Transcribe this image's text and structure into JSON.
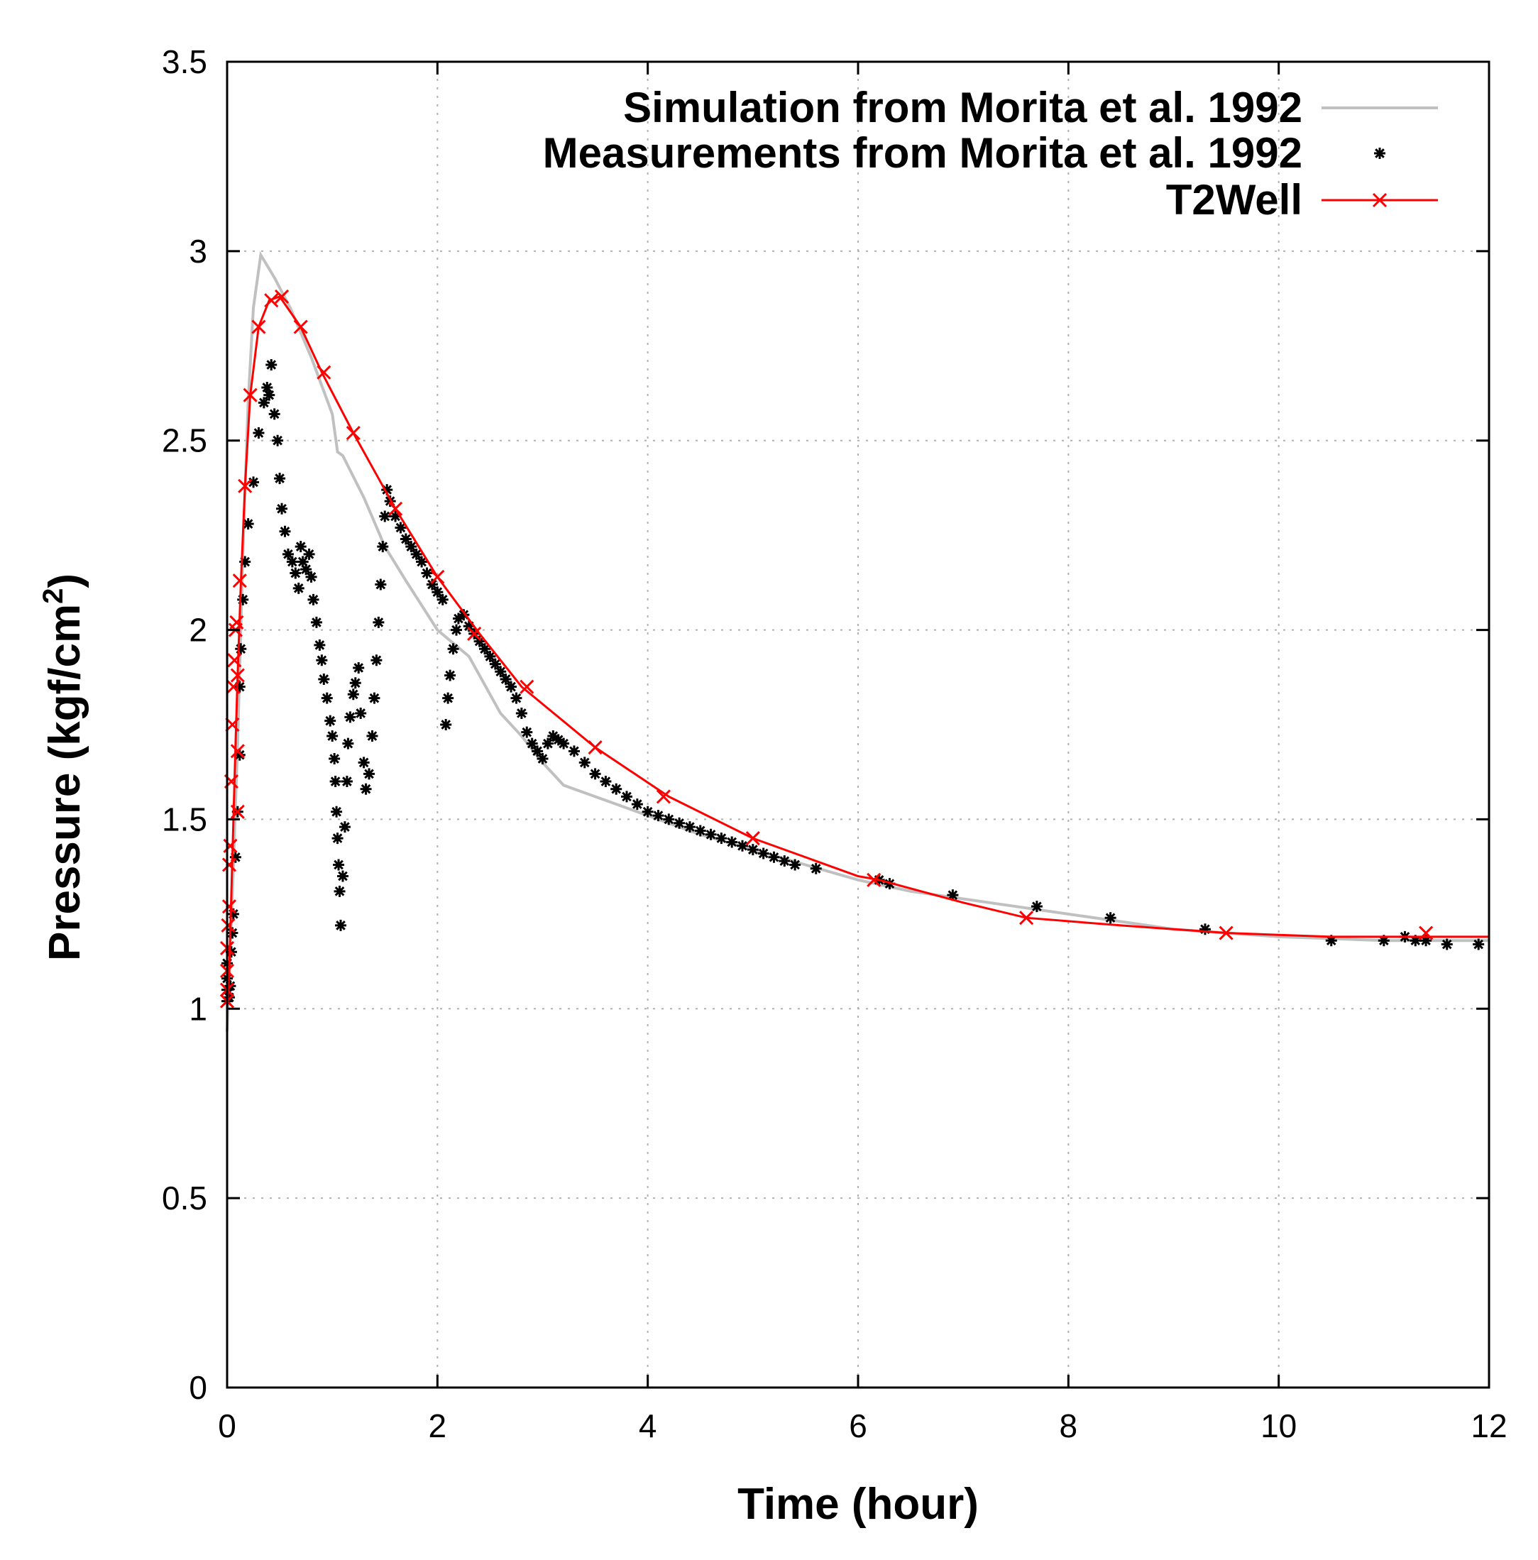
{
  "chart_data": {
    "type": "line",
    "title": "",
    "xlabel": "Time (hour)",
    "ylabel": "Pressure (kgf/cm",
    "ylabel_superscript": "2",
    "ylabel_close": ")",
    "xlim": [
      0,
      12
    ],
    "ylim": [
      0,
      3.5
    ],
    "xticks": [
      0,
      2,
      4,
      6,
      8,
      10,
      12
    ],
    "xtick_labels": [
      "0",
      "2",
      "4",
      "6",
      "8",
      "10",
      "12"
    ],
    "yticks": [
      0,
      0.5,
      1,
      1.5,
      2,
      2.5,
      3,
      3.5
    ],
    "ytick_labels": [
      "0",
      "0.5",
      "1",
      "1.5",
      "2",
      "2.5",
      "3",
      "3.5"
    ],
    "grid": true,
    "legend_position": "top-right",
    "series": [
      {
        "name": "Simulation from Morita et al. 1992",
        "style": "line",
        "color": "#c0c0c0",
        "points": [
          [
            0,
            0.94
          ],
          [
            0.05,
            1.3
          ],
          [
            0.1,
            1.7
          ],
          [
            0.15,
            2.2
          ],
          [
            0.2,
            2.6
          ],
          [
            0.25,
            2.85
          ],
          [
            0.32,
            2.99
          ],
          [
            0.45,
            2.93
          ],
          [
            0.6,
            2.85
          ],
          [
            0.8,
            2.72
          ],
          [
            1.0,
            2.57
          ],
          [
            1.05,
            2.47
          ],
          [
            1.1,
            2.46
          ],
          [
            1.3,
            2.35
          ],
          [
            1.5,
            2.22
          ],
          [
            1.7,
            2.13
          ],
          [
            2.0,
            2.0
          ],
          [
            2.3,
            1.93
          ],
          [
            2.6,
            1.78
          ],
          [
            2.8,
            1.72
          ],
          [
            3.0,
            1.65
          ],
          [
            3.2,
            1.59
          ],
          [
            3.5,
            1.56
          ],
          [
            4.0,
            1.51
          ],
          [
            4.5,
            1.46
          ],
          [
            5.0,
            1.42
          ],
          [
            5.5,
            1.38
          ],
          [
            6.0,
            1.34
          ],
          [
            6.5,
            1.31
          ],
          [
            7.0,
            1.29
          ],
          [
            7.5,
            1.27
          ],
          [
            8.0,
            1.25
          ],
          [
            8.5,
            1.23
          ],
          [
            9.0,
            1.21
          ],
          [
            9.5,
            1.2
          ],
          [
            10.0,
            1.19
          ],
          [
            10.5,
            1.185
          ],
          [
            11.0,
            1.18
          ],
          [
            11.5,
            1.18
          ],
          [
            12.0,
            1.18
          ]
        ]
      },
      {
        "name": "Measurements from Morita et al. 1992",
        "style": "points",
        "marker": "asterisk",
        "color": "#000000",
        "points": [
          [
            0.0,
            1.02
          ],
          [
            0.0,
            1.05
          ],
          [
            0.0,
            1.08
          ],
          [
            0.0,
            1.12
          ],
          [
            0.02,
            1.03
          ],
          [
            0.03,
            1.06
          ],
          [
            0.04,
            1.15
          ],
          [
            0.05,
            1.2
          ],
          [
            0.06,
            1.25
          ],
          [
            0.08,
            1.4
          ],
          [
            0.1,
            1.52
          ],
          [
            0.12,
            1.67
          ],
          [
            0.12,
            1.85
          ],
          [
            0.13,
            1.95
          ],
          [
            0.15,
            2.08
          ],
          [
            0.17,
            2.18
          ],
          [
            0.2,
            2.28
          ],
          [
            0.25,
            2.39
          ],
          [
            0.3,
            2.52
          ],
          [
            0.35,
            2.6
          ],
          [
            0.38,
            2.64
          ],
          [
            0.4,
            2.62
          ],
          [
            0.42,
            2.7
          ],
          [
            0.45,
            2.57
          ],
          [
            0.48,
            2.5
          ],
          [
            0.5,
            2.4
          ],
          [
            0.52,
            2.32
          ],
          [
            0.55,
            2.26
          ],
          [
            0.58,
            2.2
          ],
          [
            0.62,
            2.18
          ],
          [
            0.65,
            2.15
          ],
          [
            0.68,
            2.11
          ],
          [
            0.7,
            2.22
          ],
          [
            0.72,
            2.18
          ],
          [
            0.75,
            2.16
          ],
          [
            0.78,
            2.2
          ],
          [
            0.8,
            2.14
          ],
          [
            0.82,
            2.08
          ],
          [
            0.85,
            2.02
          ],
          [
            0.88,
            1.96
          ],
          [
            0.9,
            1.92
          ],
          [
            0.92,
            1.87
          ],
          [
            0.95,
            1.82
          ],
          [
            0.98,
            1.76
          ],
          [
            1.0,
            1.72
          ],
          [
            1.02,
            1.66
          ],
          [
            1.03,
            1.6
          ],
          [
            1.04,
            1.52
          ],
          [
            1.05,
            1.45
          ],
          [
            1.06,
            1.38
          ],
          [
            1.07,
            1.31
          ],
          [
            1.08,
            1.22
          ],
          [
            1.1,
            1.35
          ],
          [
            1.12,
            1.48
          ],
          [
            1.14,
            1.6
          ],
          [
            1.15,
            1.7
          ],
          [
            1.17,
            1.77
          ],
          [
            1.2,
            1.83
          ],
          [
            1.22,
            1.86
          ],
          [
            1.25,
            1.9
          ],
          [
            1.27,
            1.78
          ],
          [
            1.3,
            1.65
          ],
          [
            1.32,
            1.58
          ],
          [
            1.35,
            1.62
          ],
          [
            1.38,
            1.72
          ],
          [
            1.4,
            1.82
          ],
          [
            1.42,
            1.92
          ],
          [
            1.44,
            2.02
          ],
          [
            1.46,
            2.12
          ],
          [
            1.48,
            2.22
          ],
          [
            1.5,
            2.3
          ],
          [
            1.52,
            2.37
          ],
          [
            1.55,
            2.34
          ],
          [
            1.6,
            2.3
          ],
          [
            1.65,
            2.27
          ],
          [
            1.7,
            2.24
          ],
          [
            1.75,
            2.22
          ],
          [
            1.8,
            2.2
          ],
          [
            1.85,
            2.18
          ],
          [
            1.9,
            2.15
          ],
          [
            1.95,
            2.12
          ],
          [
            2.0,
            2.1
          ],
          [
            2.05,
            2.08
          ],
          [
            2.08,
            1.75
          ],
          [
            2.1,
            1.82
          ],
          [
            2.12,
            1.88
          ],
          [
            2.15,
            1.95
          ],
          [
            2.18,
            2.0
          ],
          [
            2.2,
            2.03
          ],
          [
            2.25,
            2.04
          ],
          [
            2.3,
            2.01
          ],
          [
            2.35,
            1.99
          ],
          [
            2.4,
            1.97
          ],
          [
            2.45,
            1.95
          ],
          [
            2.5,
            1.93
          ],
          [
            2.55,
            1.91
          ],
          [
            2.6,
            1.89
          ],
          [
            2.65,
            1.87
          ],
          [
            2.7,
            1.85
          ],
          [
            2.75,
            1.82
          ],
          [
            2.8,
            1.78
          ],
          [
            2.85,
            1.73
          ],
          [
            2.9,
            1.7
          ],
          [
            2.95,
            1.68
          ],
          [
            3.0,
            1.66
          ],
          [
            3.05,
            1.7
          ],
          [
            3.1,
            1.72
          ],
          [
            3.15,
            1.71
          ],
          [
            3.2,
            1.7
          ],
          [
            3.3,
            1.68
          ],
          [
            3.4,
            1.65
          ],
          [
            3.5,
            1.62
          ],
          [
            3.6,
            1.6
          ],
          [
            3.7,
            1.58
          ],
          [
            3.8,
            1.56
          ],
          [
            3.9,
            1.54
          ],
          [
            4.0,
            1.52
          ],
          [
            4.1,
            1.51
          ],
          [
            4.2,
            1.5
          ],
          [
            4.3,
            1.49
          ],
          [
            4.4,
            1.48
          ],
          [
            4.5,
            1.47
          ],
          [
            4.6,
            1.46
          ],
          [
            4.7,
            1.45
          ],
          [
            4.8,
            1.44
          ],
          [
            4.9,
            1.43
          ],
          [
            5.0,
            1.42
          ],
          [
            5.1,
            1.41
          ],
          [
            5.2,
            1.4
          ],
          [
            5.3,
            1.39
          ],
          [
            5.4,
            1.38
          ],
          [
            5.6,
            1.37
          ],
          [
            6.2,
            1.34
          ],
          [
            6.3,
            1.33
          ],
          [
            6.9,
            1.3
          ],
          [
            7.7,
            1.27
          ],
          [
            8.4,
            1.24
          ],
          [
            9.3,
            1.21
          ],
          [
            10.5,
            1.18
          ],
          [
            11.0,
            1.18
          ],
          [
            11.2,
            1.19
          ],
          [
            11.3,
            1.18
          ],
          [
            11.4,
            1.18
          ],
          [
            11.6,
            1.17
          ],
          [
            11.9,
            1.17
          ]
        ]
      },
      {
        "name": "T2Well",
        "style": "linespoints",
        "marker": "cross",
        "color": "#ff0000",
        "line_points": [
          [
            0.0,
            1.0
          ],
          [
            0.02,
            1.1
          ],
          [
            0.04,
            1.3
          ],
          [
            0.06,
            1.5
          ],
          [
            0.08,
            1.7
          ],
          [
            0.1,
            1.88
          ],
          [
            0.13,
            2.12
          ],
          [
            0.17,
            2.38
          ],
          [
            0.22,
            2.62
          ],
          [
            0.3,
            2.8
          ],
          [
            0.4,
            2.87
          ],
          [
            0.5,
            2.88
          ],
          [
            0.7,
            2.8
          ],
          [
            0.9,
            2.68
          ],
          [
            1.2,
            2.52
          ],
          [
            1.6,
            2.32
          ],
          [
            2.0,
            2.14
          ],
          [
            2.4,
            1.99
          ],
          [
            2.8,
            1.85
          ],
          [
            3.5,
            1.69
          ],
          [
            4.2,
            1.56
          ],
          [
            5.0,
            1.45
          ],
          [
            6.0,
            1.35
          ],
          [
            6.2,
            1.34
          ],
          [
            7.0,
            1.28
          ],
          [
            7.6,
            1.24
          ],
          [
            8.5,
            1.22
          ],
          [
            9.5,
            1.2
          ],
          [
            10.5,
            1.19
          ],
          [
            11.4,
            1.19
          ],
          [
            12.0,
            1.19
          ]
        ],
        "markers": [
          [
            0.0,
            1.02
          ],
          [
            0.0,
            1.05
          ],
          [
            0.0,
            1.1
          ],
          [
            0.0,
            1.16
          ],
          [
            0.01,
            1.22
          ],
          [
            0.02,
            1.27
          ],
          [
            0.02,
            1.38
          ],
          [
            0.03,
            1.43
          ],
          [
            0.04,
            1.6
          ],
          [
            0.05,
            1.75
          ],
          [
            0.06,
            1.85
          ],
          [
            0.07,
            1.92
          ],
          [
            0.08,
            2.0
          ],
          [
            0.09,
            2.02
          ],
          [
            0.1,
            1.68
          ],
          [
            0.1,
            1.52
          ],
          [
            0.1,
            1.88
          ],
          [
            0.12,
            2.13
          ],
          [
            0.17,
            2.38
          ],
          [
            0.22,
            2.62
          ],
          [
            0.3,
            2.8
          ],
          [
            0.42,
            2.87
          ],
          [
            0.52,
            2.88
          ],
          [
            0.7,
            2.8
          ],
          [
            0.92,
            2.68
          ],
          [
            1.2,
            2.52
          ],
          [
            1.6,
            2.32
          ],
          [
            2.0,
            2.14
          ],
          [
            2.35,
            1.99
          ],
          [
            2.85,
            1.85
          ],
          [
            3.5,
            1.69
          ],
          [
            4.15,
            1.56
          ],
          [
            5.0,
            1.45
          ],
          [
            6.15,
            1.34
          ],
          [
            7.6,
            1.24
          ],
          [
            9.5,
            1.2
          ],
          [
            11.4,
            1.2
          ]
        ]
      }
    ]
  }
}
